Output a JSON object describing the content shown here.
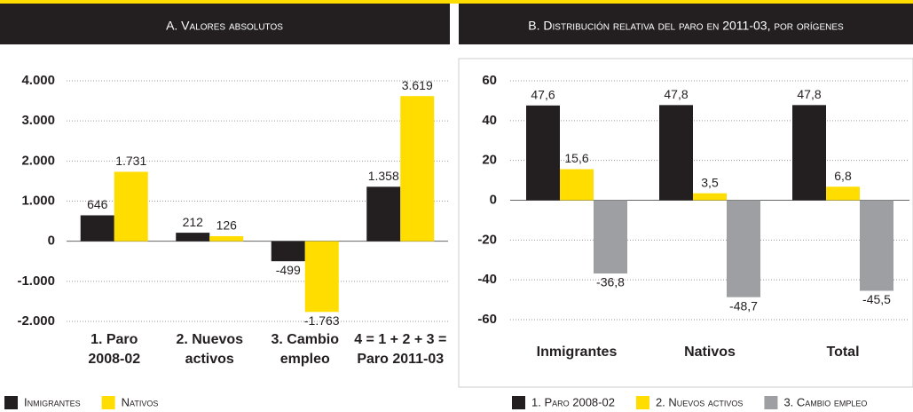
{
  "chart_data": [
    {
      "type": "bar",
      "title": "A. Valores absolutos",
      "categories": [
        [
          "1. Paro",
          "2008-02"
        ],
        [
          "2. Nuevos",
          "activos"
        ],
        [
          "3. Cambio",
          "empleo"
        ],
        [
          "4 = 1 + 2 + 3 =",
          "Paro 2011-03"
        ]
      ],
      "series": [
        {
          "name": "Inmigrantes",
          "color": "#231f20",
          "values": [
            646,
            212,
            -499,
            1358
          ],
          "value_labels": [
            "646",
            "212",
            "-499",
            "1.358"
          ]
        },
        {
          "name": "Nativos",
          "color": "#ffdd00",
          "values": [
            1731,
            126,
            -1763,
            3619
          ],
          "value_labels": [
            "1.731",
            "126",
            "-1.763",
            "3.619"
          ]
        }
      ],
      "ylim": [
        -2000,
        4000
      ],
      "yticks": [
        {
          "value": -2000,
          "label": "-2.000"
        },
        {
          "value": -1000,
          "label": "-1.000"
        },
        0,
        {
          "value": 1000,
          "label": "1.000"
        },
        {
          "value": 2000,
          "label": "2.000"
        },
        {
          "value": 3000,
          "label": "3.000"
        },
        {
          "value": 4000,
          "label": "4.000"
        }
      ],
      "grid": true
    },
    {
      "type": "bar",
      "title": "B. Distribución relativa del paro en 2011-03, por orígenes",
      "categories": [
        "Inmigrantes",
        "Nativos",
        "Total"
      ],
      "series": [
        {
          "name": "1. Paro 2008-02",
          "color": "#231f20",
          "values": [
            47.6,
            47.8,
            47.8
          ],
          "value_labels": [
            "47,6",
            "47,8",
            "47,8"
          ]
        },
        {
          "name": "2. Nuevos activos",
          "color": "#ffdd00",
          "values": [
            15.6,
            3.5,
            6.8
          ],
          "value_labels": [
            "15,6",
            "3,5",
            "6,8"
          ]
        },
        {
          "name": "3. Cambio empleo",
          "color": "#9d9fa2",
          "values": [
            -36.8,
            -48.7,
            -45.5
          ],
          "value_labels": [
            "-36,8",
            "-48,7",
            "-45,5"
          ]
        }
      ],
      "ylim": [
        -60,
        60
      ],
      "yticks": [
        -60,
        -40,
        -20,
        0,
        20,
        40,
        60
      ],
      "grid": true
    }
  ]
}
